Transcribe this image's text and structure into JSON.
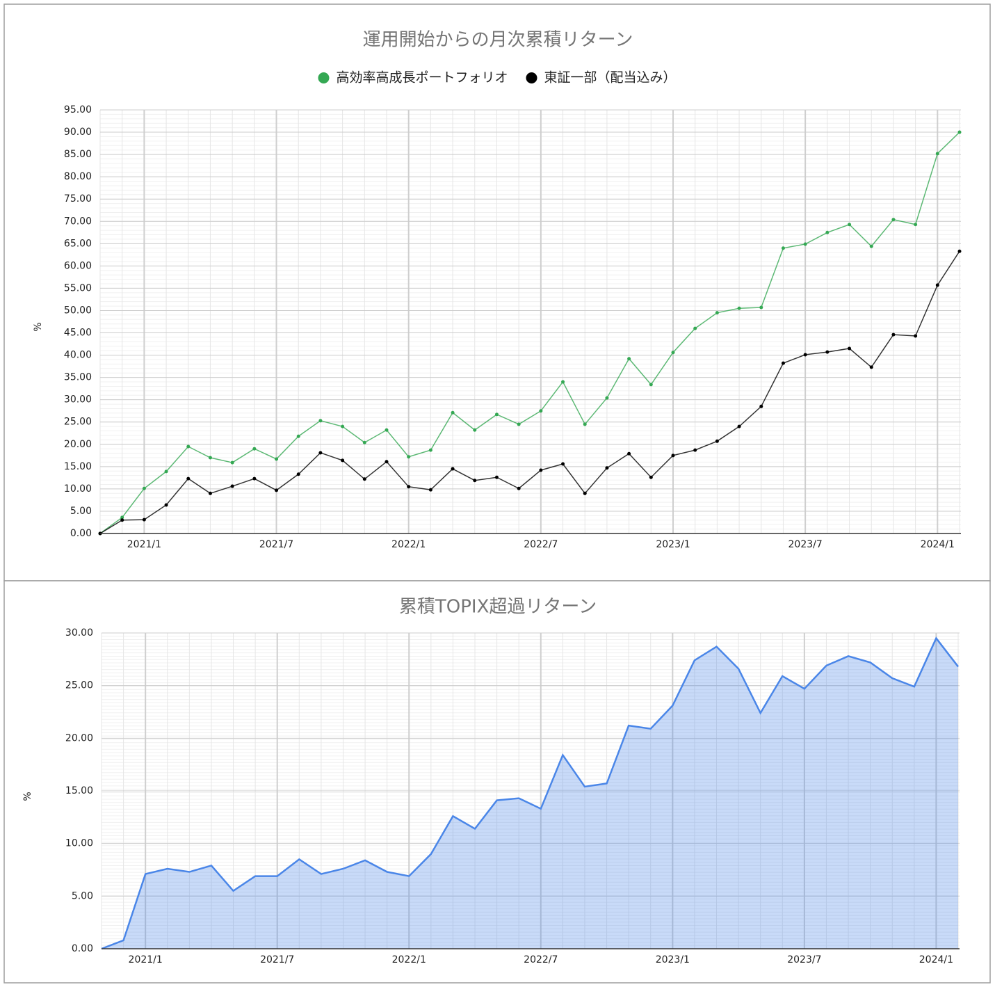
{
  "chart_data": [
    {
      "type": "line",
      "title": "運用開始からの月次累積リターン",
      "ylabel": "%",
      "categories": [
        null,
        null,
        "2021/1",
        null,
        null,
        null,
        null,
        null,
        "2021/7",
        null,
        null,
        null,
        null,
        null,
        "2022/1",
        null,
        null,
        null,
        null,
        null,
        "2022/7",
        null,
        null,
        null,
        null,
        null,
        "2023/1",
        null,
        null,
        null,
        null,
        null,
        "2023/7",
        null,
        null,
        null,
        null,
        null,
        "2024/1",
        null
      ],
      "series": [
        {
          "name": "高効率高成長ポートフォリオ",
          "color": "#34a853",
          "values": [
            0,
            3.6,
            10.1,
            13.9,
            19.5,
            17.0,
            15.9,
            19.0,
            16.7,
            21.8,
            25.3,
            24.0,
            20.4,
            23.2,
            17.2,
            18.7,
            27.1,
            23.2,
            26.7,
            24.5,
            27.5,
            34.0,
            24.5,
            30.4,
            39.2,
            33.4,
            40.6,
            46.0,
            49.5,
            50.5,
            50.7,
            64.0,
            64.9,
            67.5,
            69.3,
            64.4,
            70.4,
            69.3,
            85.2,
            90.0
          ]
        },
        {
          "name": "東証一部（配当込み）",
          "color": "#000000",
          "values": [
            0,
            3.0,
            3.1,
            6.4,
            12.3,
            9.0,
            10.6,
            12.3,
            9.7,
            13.3,
            18.1,
            16.4,
            12.2,
            16.1,
            10.5,
            9.8,
            14.5,
            11.9,
            12.6,
            10.1,
            14.2,
            15.6,
            9.0,
            14.7,
            17.9,
            12.6,
            17.5,
            18.7,
            20.7,
            24.0,
            28.5,
            38.2,
            40.1,
            40.7,
            41.5,
            37.3,
            44.6,
            44.3,
            55.7,
            63.3
          ]
        }
      ],
      "ylim": [
        0,
        95
      ],
      "yticks": [
        {
          "value": 0,
          "label": "0.00"
        },
        {
          "value": 5,
          "label": "5.00"
        },
        {
          "value": 10,
          "label": "10.00"
        },
        {
          "value": 15,
          "label": "15.00"
        },
        {
          "value": 20,
          "label": "20.00"
        },
        {
          "value": 25,
          "label": "25.00"
        },
        {
          "value": 30,
          "label": "30.00"
        },
        {
          "value": 35,
          "label": "35.00"
        },
        {
          "value": 40,
          "label": "40.00"
        },
        {
          "value": 45,
          "label": "45.00"
        },
        {
          "value": 50,
          "label": "50.00"
        },
        {
          "value": 55,
          "label": "55.00"
        },
        {
          "value": 60,
          "label": "60.00"
        },
        {
          "value": 65,
          "label": "65.00"
        },
        {
          "value": 70,
          "label": "70.00"
        },
        {
          "value": 75,
          "label": "75.00"
        },
        {
          "value": 80,
          "label": "80.00"
        },
        {
          "value": 85,
          "label": "85.00"
        },
        {
          "value": 90,
          "label": "90.00"
        },
        {
          "value": 95,
          "label": "95.00"
        }
      ],
      "grid": true,
      "legend": "top"
    },
    {
      "type": "area",
      "title": "累積TOPIX超過リターン",
      "ylabel": "%",
      "categories": [
        null,
        null,
        "2021/1",
        null,
        null,
        null,
        null,
        null,
        "2021/7",
        null,
        null,
        null,
        null,
        null,
        "2022/1",
        null,
        null,
        null,
        null,
        null,
        "2022/7",
        null,
        null,
        null,
        null,
        null,
        "2023/1",
        null,
        null,
        null,
        null,
        null,
        "2023/7",
        null,
        null,
        null,
        null,
        null,
        "2024/1",
        null
      ],
      "color": "#4a86e8",
      "values": [
        0,
        0.8,
        7.1,
        7.6,
        7.3,
        7.9,
        5.5,
        6.9,
        6.9,
        8.5,
        7.1,
        7.6,
        8.4,
        7.3,
        6.9,
        9.0,
        12.6,
        11.4,
        14.1,
        14.3,
        13.3,
        18.4,
        15.4,
        15.7,
        21.2,
        20.9,
        23.1,
        27.4,
        28.7,
        26.6,
        22.4,
        25.9,
        24.7,
        26.9,
        27.8,
        27.2,
        25.7,
        24.9,
        29.5,
        26.8
      ],
      "ylim": [
        0,
        30
      ],
      "yticks": [
        {
          "value": 0,
          "label": "0.00"
        },
        {
          "value": 5,
          "label": "5.00"
        },
        {
          "value": 10,
          "label": "10.00"
        },
        {
          "value": 15,
          "label": "15.00"
        },
        {
          "value": 20,
          "label": "20.00"
        },
        {
          "value": 25,
          "label": "25.00"
        },
        {
          "value": 30,
          "label": "30.00"
        }
      ],
      "grid": true
    }
  ]
}
